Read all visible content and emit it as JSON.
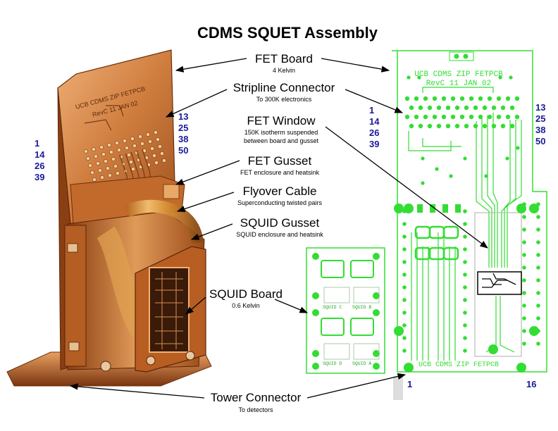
{
  "title": "CDMS SQUET Assembly",
  "labels": {
    "fet_board": {
      "name": "FET Board",
      "sub": "4 Kelvin"
    },
    "stripline": {
      "name": "Stripline Connector",
      "sub": "To 300K electronics"
    },
    "fet_window": {
      "name": "FET Window",
      "sub1": "150K isotherm suspended",
      "sub2": "between board and gusset"
    },
    "fet_gusset": {
      "name": "FET Gusset",
      "sub": "FET enclosure and heatsink"
    },
    "flyover": {
      "name": "Flyover Cable",
      "sub": "Superconducting twisted pairs"
    },
    "squid_gusset": {
      "name": "SQUID Gusset",
      "sub": "SQUID enclosure and heatsink"
    },
    "squid_board": {
      "name": "SQUID Board",
      "sub": "0.6 Kelvin"
    },
    "tower": {
      "name": "Tower Connector",
      "sub": "To detectors"
    }
  },
  "pin_numbers": {
    "photo_left": [
      "1",
      "14",
      "26",
      "39"
    ],
    "photo_right": [
      "13",
      "25",
      "38",
      "50"
    ],
    "pcb_left": [
      "1",
      "14",
      "26",
      "39"
    ],
    "pcb_right": [
      "13",
      "25",
      "38",
      "50"
    ],
    "pcb_bottom_left": "1",
    "pcb_bottom_right": "16"
  },
  "pcb_text": {
    "line1": "UCB CDMS ZIP FETPCB",
    "line2": "RevC  11 JAN 02",
    "bottom": "UCB CDMS ZIP FETPCB"
  },
  "photo_pcb_text": {
    "line1": "UCB CDMS ZIP FETPCB",
    "line2": "RevC  11 JAN 02"
  },
  "squid_pcb_text": {
    "c": "SQUID C",
    "b": "SQUID B",
    "d": "SQUID D",
    "a": "SQUID A"
  },
  "colors": {
    "pcb_green": "#33dd33",
    "pin_blue": "#1a1a99",
    "copper": "#c8743a",
    "copper_light": "#eba66a",
    "copper_dark": "#7a3a12"
  }
}
